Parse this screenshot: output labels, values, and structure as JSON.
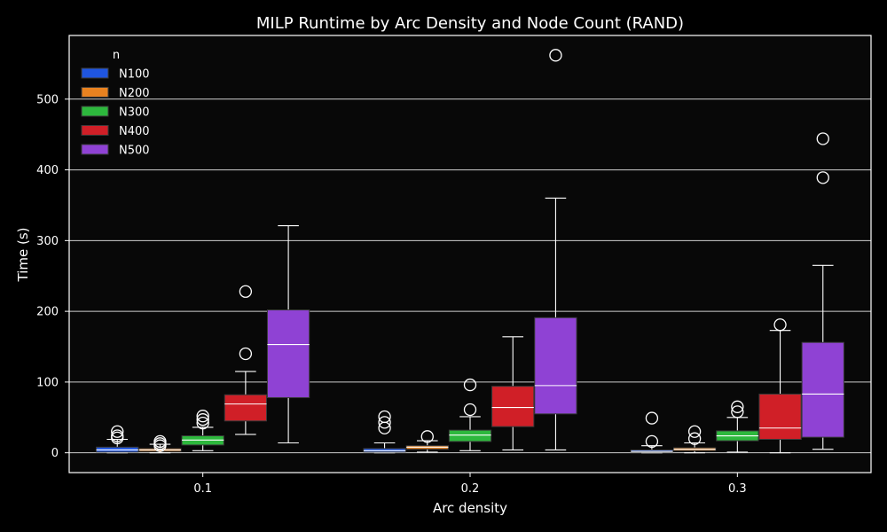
{
  "chart_data": {
    "type": "box",
    "title": "MILP Runtime by Arc Density and Node Count (RAND)",
    "xlabel": "Arc density",
    "ylabel": "Time (s)",
    "categories": [
      "0.1",
      "0.2",
      "0.3"
    ],
    "ylim": [
      -28,
      590
    ],
    "yticks": [
      0,
      100,
      200,
      300,
      400,
      500
    ],
    "grid": "horizontal",
    "background": "#080808",
    "legend": {
      "title": "n",
      "position": "top-left",
      "entries": [
        "N100",
        "N200",
        "N300",
        "N400",
        "N500"
      ]
    },
    "series": [
      {
        "name": "N100",
        "color": "#1f55e0",
        "boxes": [
          {
            "whislo": 0,
            "q1": 1,
            "med": 4,
            "q3": 8,
            "whishi": 19,
            "fliers": [
              21,
              24,
              30
            ]
          },
          {
            "whislo": 0,
            "q1": 1,
            "med": 3,
            "q3": 6,
            "whishi": 14,
            "fliers": [
              35,
              43,
              51
            ]
          },
          {
            "whislo": 0,
            "q1": 1,
            "med": 2,
            "q3": 4,
            "whishi": 10,
            "fliers": [
              16,
              49
            ]
          }
        ]
      },
      {
        "name": "N200",
        "color": "#e88220",
        "boxes": [
          {
            "whislo": 0,
            "q1": 2,
            "med": 4,
            "q3": 6,
            "whishi": 12,
            "fliers": [
              10,
              13,
              16
            ]
          },
          {
            "whislo": 1,
            "q1": 5,
            "med": 8,
            "q3": 10,
            "whishi": 17,
            "fliers": [
              23
            ]
          },
          {
            "whislo": 0,
            "q1": 3,
            "med": 5,
            "q3": 7,
            "whishi": 14,
            "fliers": [
              20,
              30
            ]
          }
        ]
      },
      {
        "name": "N300",
        "color": "#2db83d",
        "boxes": [
          {
            "whislo": 3,
            "q1": 11,
            "med": 18,
            "q3": 24,
            "whishi": 36,
            "fliers": [
              42,
              47,
              52
            ]
          },
          {
            "whislo": 3,
            "q1": 16,
            "med": 25,
            "q3": 32,
            "whishi": 51,
            "fliers": [
              61,
              96
            ]
          },
          {
            "whislo": 1,
            "q1": 17,
            "med": 24,
            "q3": 31,
            "whishi": 50,
            "fliers": [
              58,
              65
            ]
          }
        ]
      },
      {
        "name": "N400",
        "color": "#d01f27",
        "boxes": [
          {
            "whislo": 26,
            "q1": 45,
            "med": 69,
            "q3": 82,
            "whishi": 115,
            "fliers": [
              140,
              228
            ]
          },
          {
            "whislo": 4,
            "q1": 37,
            "med": 64,
            "q3": 94,
            "whishi": 164,
            "fliers": []
          },
          {
            "whislo": 0,
            "q1": 19,
            "med": 35,
            "q3": 83,
            "whishi": 173,
            "fliers": [
              181
            ]
          }
        ]
      },
      {
        "name": "N500",
        "color": "#8f42d4",
        "boxes": [
          {
            "whislo": 14,
            "q1": 78,
            "med": 153,
            "q3": 202,
            "whishi": 321,
            "fliers": []
          },
          {
            "whislo": 4,
            "q1": 55,
            "med": 95,
            "q3": 191,
            "whishi": 360,
            "fliers": [
              562
            ]
          },
          {
            "whislo": 5,
            "q1": 22,
            "med": 83,
            "q3": 156,
            "whishi": 265,
            "fliers": [
              389,
              444
            ]
          }
        ]
      }
    ]
  }
}
